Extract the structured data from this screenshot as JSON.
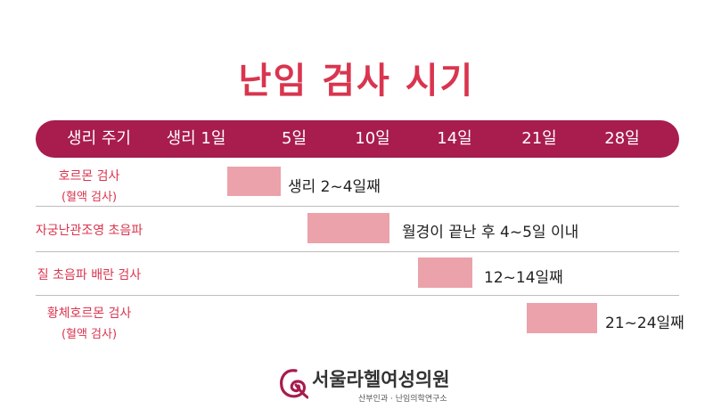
{
  "title": "난임 검사 시기",
  "header": {
    "cells": [
      "생리 주기",
      "생리 1일",
      "5일",
      "10일",
      "14일",
      "21일",
      "28일"
    ]
  },
  "rows": [
    {
      "label": "호르몬 검사",
      "sublabel": "(혈액 검사)",
      "note": "생리 2~4일째"
    },
    {
      "label": "자궁난관조영 초음파",
      "sublabel": "",
      "note": "월경이 끝난 후 4~5일 이내"
    },
    {
      "label": "질 초음파 배란 검사",
      "sublabel": "",
      "note": "12~14일째"
    },
    {
      "label": "황체호르몬 검사",
      "sublabel": "(혈액 검사)",
      "note": "21~24일째"
    }
  ],
  "colors": {
    "accent": "#d9354f",
    "header_bg": "#a81c4e",
    "bar": "#eba2ab"
  },
  "logo": {
    "name": "서울라헬여성의원",
    "subtitle": "산부인과 · 난임의학연구소",
    "icon": "logo-swirl-icon"
  }
}
